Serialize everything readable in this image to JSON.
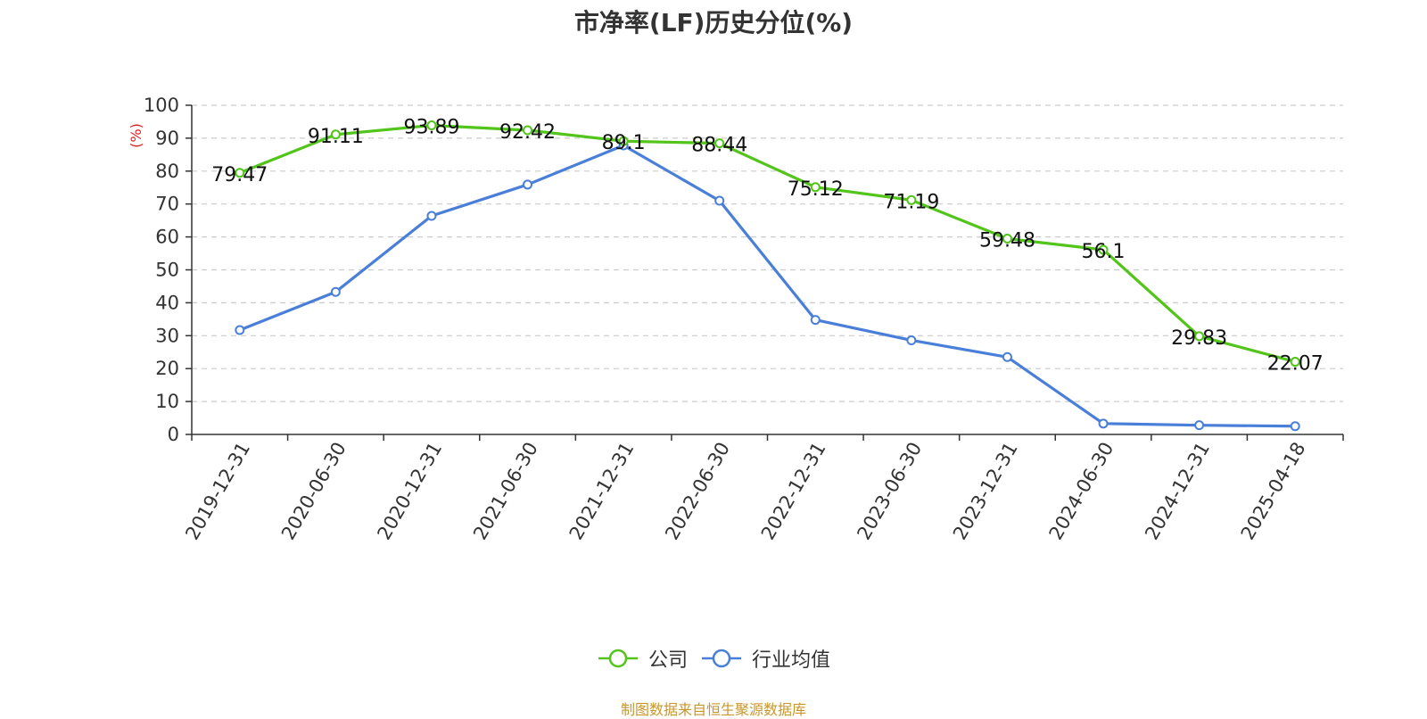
{
  "chart_data": {
    "type": "line",
    "title": "市净率(LF)历史分位(%)",
    "ylabel": "(%)",
    "ylim": [
      0,
      100
    ],
    "yticks": [
      "0",
      "10",
      "20",
      "30",
      "40",
      "50",
      "60",
      "70",
      "80",
      "90",
      "100"
    ],
    "categories": [
      "2019-12-31",
      "2020-06-30",
      "2020-12-31",
      "2021-06-30",
      "2021-12-31",
      "2022-06-30",
      "2022-12-31",
      "2023-06-30",
      "2023-12-31",
      "2024-06-30",
      "2024-12-31",
      "2025-04-18"
    ],
    "grid": "horizontal dashed",
    "legend_position": "bottom",
    "series": [
      {
        "name": "公司",
        "color": "#52c41a",
        "values": [
          79.47,
          91.11,
          93.89,
          92.42,
          89.1,
          88.44,
          75.12,
          71.19,
          59.48,
          56.1,
          29.83,
          22.07
        ],
        "labels": [
          "79.47",
          "91.11",
          "93.89",
          "92.42",
          "89.1",
          "88.44",
          "75.12",
          "71.19",
          "59.48",
          "56.1",
          "29.83",
          "22.07"
        ]
      },
      {
        "name": "行业均值",
        "color": "#4a7fd9",
        "values": [
          31.7,
          43.3,
          66.4,
          75.9,
          87.8,
          71.0,
          34.8,
          28.6,
          23.5,
          3.3,
          2.8,
          2.5
        ]
      }
    ]
  },
  "source": "制图数据来自恒生聚源数据库"
}
